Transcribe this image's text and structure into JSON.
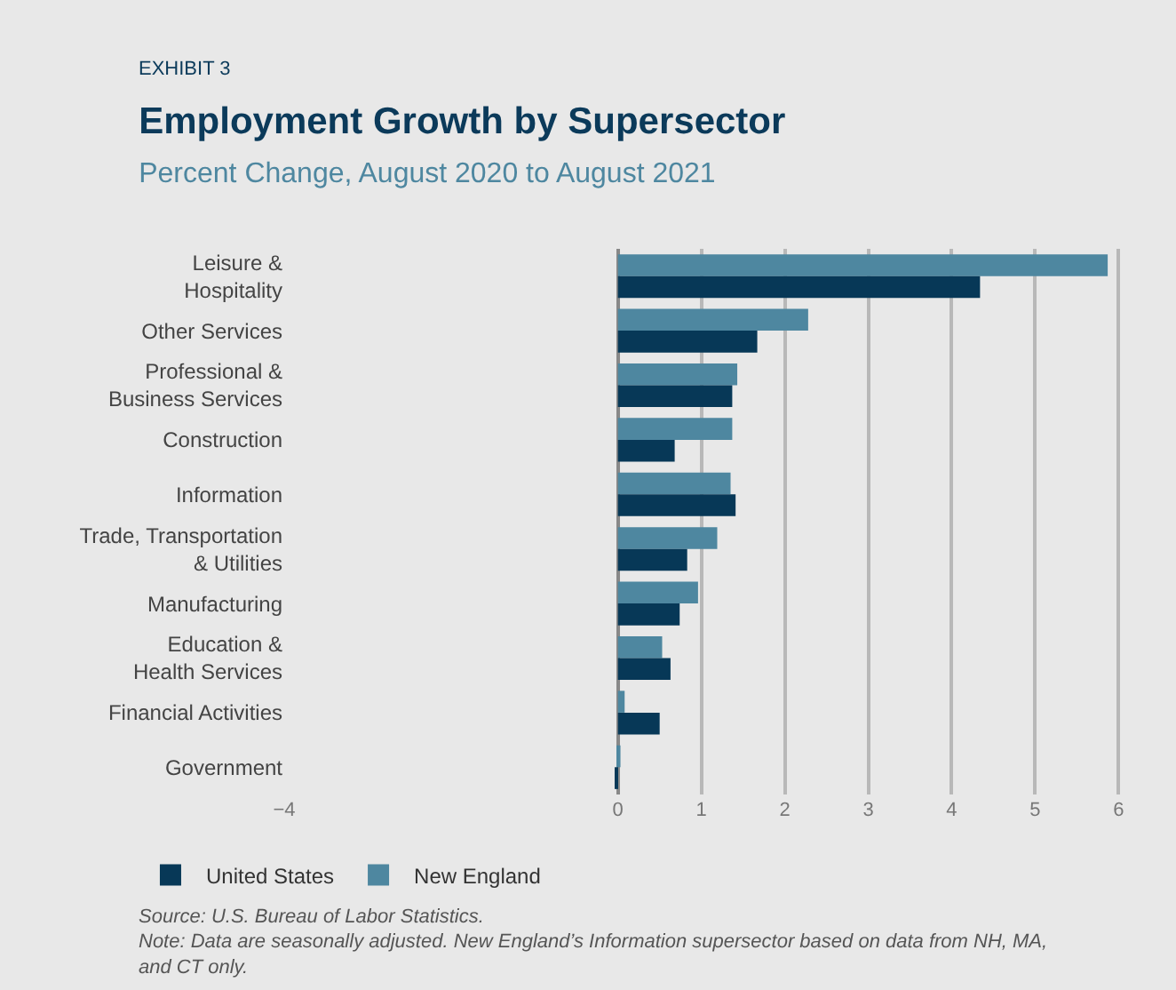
{
  "chart_data": {
    "type": "bar",
    "orientation": "horizontal",
    "title": "Employment Growth by Supersector",
    "subtitle": "Percent Change, August 2020 to August 2021",
    "categories": [
      "Leisure & Hospitality",
      "Other Services",
      "Professional & Business Services",
      "Construction",
      "Information",
      "Trade, Transportation & Utilities",
      "Manufacturing",
      "Education & Health Services",
      "Financial Activities",
      "Government"
    ],
    "series": [
      {
        "name": "New England",
        "color": "#4e87a0",
        "values": [
          5.87,
          2.28,
          1.43,
          1.37,
          1.35,
          1.19,
          0.96,
          0.53,
          0.08,
          0.03
        ]
      },
      {
        "name": "United States",
        "color": "#073857",
        "values": [
          4.34,
          1.67,
          1.37,
          0.68,
          1.41,
          0.83,
          0.74,
          0.63,
          0.5,
          -0.03
        ]
      }
    ],
    "xlim": [
      -4,
      6.05
    ],
    "xticks": [
      -4,
      0,
      1,
      2,
      3,
      4,
      5,
      6
    ],
    "grid": "x",
    "legend": "bottom left",
    "annotations": [
      "EXHIBIT 3",
      "Source: U.S. Bureau of Labor Statistics.",
      "Note: Data are seasonally adjusted. New England’s Information supersector based on data from NH, MA, and CT only."
    ]
  }
}
